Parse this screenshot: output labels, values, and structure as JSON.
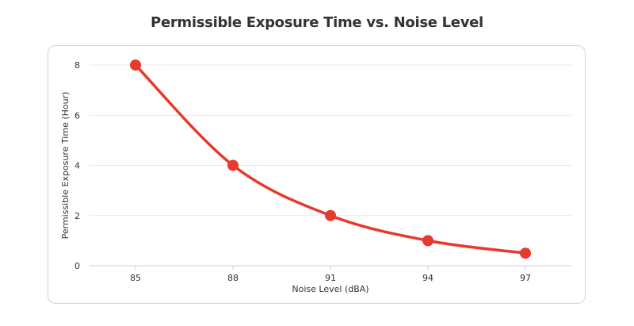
{
  "chart_data": {
    "type": "line",
    "title": "Permissible Exposure Time vs. Noise Level",
    "xlabel": "Noise Level (dBA)",
    "ylabel": "Permissible Exposure Time (Hour)",
    "x": [
      85,
      88,
      91,
      94,
      97
    ],
    "series": [
      {
        "values": [
          8,
          4,
          2,
          1,
          0.5
        ],
        "color": "#e53b2c"
      }
    ],
    "x_ticks": [
      "85",
      "88",
      "91",
      "94",
      "97"
    ],
    "y_ticks": [
      "0",
      "2",
      "4",
      "6",
      "8"
    ],
    "ylim": [
      0,
      8
    ],
    "grid": true,
    "legend": "none"
  }
}
